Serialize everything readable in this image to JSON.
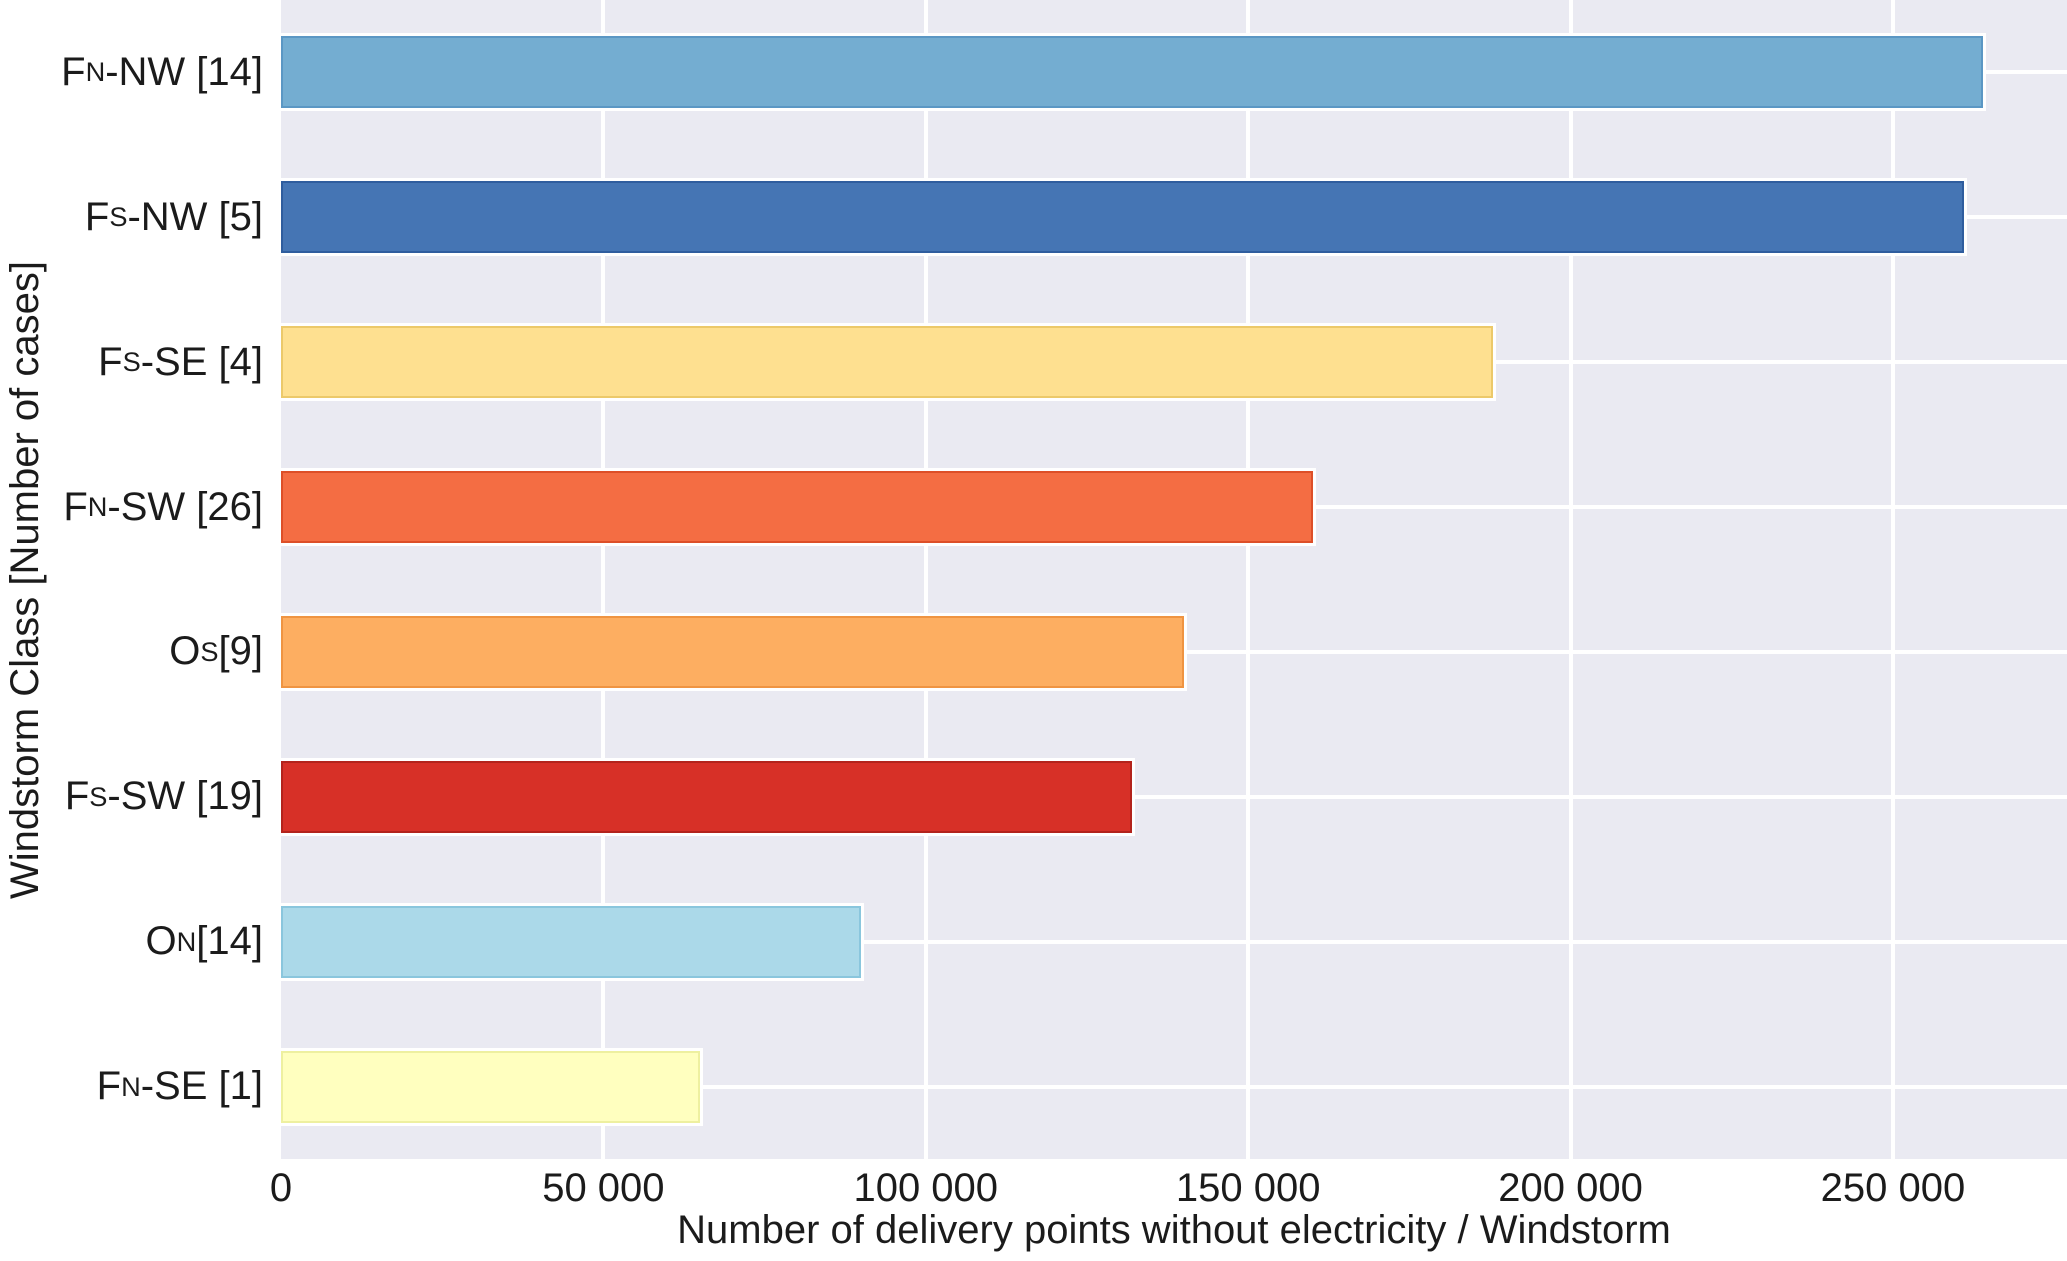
{
  "chart_data": {
    "type": "bar",
    "orientation": "horizontal",
    "xlabel": "Number of delivery points without electricity / Windstorm",
    "ylabel": "Windstorm Class [Number of cases]",
    "xlim": [
      0,
      277000
    ],
    "grid": true,
    "legend": false,
    "plot_background": "#eaeaf2",
    "gridline_color": "#ffffff",
    "text_color": "#1b1b1b",
    "x_ticks": [
      {
        "value": 0,
        "label": "0"
      },
      {
        "value": 50000,
        "label": "50 000"
      },
      {
        "value": 100000,
        "label": "100 000"
      },
      {
        "value": 150000,
        "label": "150 000"
      },
      {
        "value": 200000,
        "label": "200 000"
      },
      {
        "value": 250000,
        "label": "250 000"
      }
    ],
    "bars": [
      {
        "id": "fn-nw",
        "label_prefix": "F",
        "label_sub": "N",
        "label_rest": "-NW [14]",
        "value": 264000,
        "color": "#74add1",
        "edge_color": "#5b97c4"
      },
      {
        "id": "fs-nw",
        "label_prefix": "F",
        "label_sub": "S",
        "label_rest": "-NW [5]",
        "value": 261000,
        "color": "#4575b4",
        "edge_color": "#2f5d9e"
      },
      {
        "id": "fs-se",
        "label_prefix": "F",
        "label_sub": "S",
        "label_rest": "-SE [4]",
        "value": 188000,
        "color": "#fee090",
        "edge_color": "#ecc96a"
      },
      {
        "id": "fn-sw",
        "label_prefix": "F",
        "label_sub": "N",
        "label_rest": "-SW [26]",
        "value": 160000,
        "color": "#f46d43",
        "edge_color": "#dd4f28"
      },
      {
        "id": "os",
        "label_prefix": "O",
        "label_sub": "S",
        "label_rest": " [9]",
        "value": 140000,
        "color": "#fdae61",
        "edge_color": "#ef9442"
      },
      {
        "id": "fs-sw",
        "label_prefix": "F",
        "label_sub": "S",
        "label_rest": "-SW [19]",
        "value": 132000,
        "color": "#d73027",
        "edge_color": "#b3231c"
      },
      {
        "id": "on",
        "label_prefix": "O",
        "label_sub": "N",
        "label_rest": " [14]",
        "value": 90000,
        "color": "#abd9e9",
        "edge_color": "#8ac6dd"
      },
      {
        "id": "fn-se",
        "label_prefix": "F",
        "label_sub": "N",
        "label_rest": "-SE [1]",
        "value": 65000,
        "color": "#ffffbf",
        "edge_color": "#eef0a0"
      }
    ]
  }
}
